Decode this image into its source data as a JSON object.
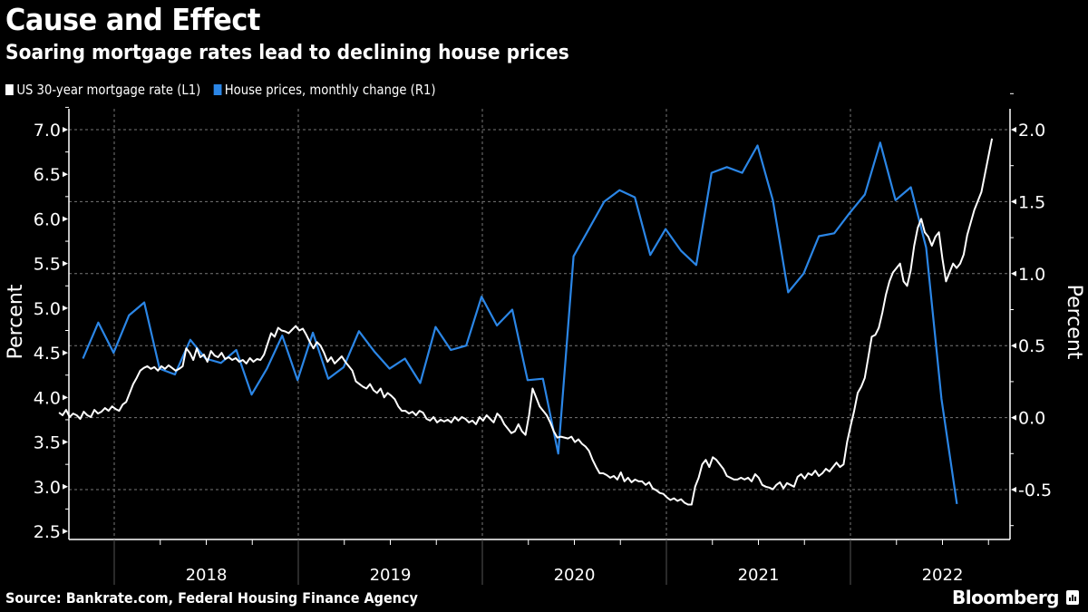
{
  "header": {
    "title": "Cause and Effect",
    "subtitle": "Soaring mortgage rates lead to declining house prices"
  },
  "legend": [
    {
      "label": "US 30-year mortgage rate (L1)",
      "color": "#ffffff"
    },
    {
      "label": "House prices, monthly change (R1)",
      "color": "#2b86e6"
    }
  ],
  "footer": {
    "source": "Source: Bankrate.com, Federal Housing Finance Agency",
    "brand": "Bloomberg"
  },
  "chart_data": {
    "type": "line",
    "title": "Cause and Effect",
    "subtitle": "Soaring mortgage rates lead to declining house prices",
    "x_axis": {
      "type": "time",
      "range": [
        "2017-09",
        "2022-10"
      ],
      "tick_labels": [
        "2018",
        "2019",
        "2020",
        "2021",
        "2022"
      ]
    },
    "y_left": {
      "label": "Percent",
      "range": [
        2.4,
        7.2
      ],
      "ticks": [
        7.0,
        6.5,
        6.0,
        5.5,
        5.0,
        4.5,
        4.0,
        3.5,
        3.0,
        2.5
      ],
      "tick_labels": [
        "7.0",
        "6.5",
        "6.0",
        "5.5",
        "5.0",
        "4.5",
        "4.0",
        "3.5",
        "3.0",
        "2.5"
      ]
    },
    "y_right": {
      "label": "Percent",
      "range": [
        -0.85,
        2.25
      ],
      "ticks": [
        2.0,
        1.5,
        1.0,
        0.5,
        0.0,
        -0.5
      ],
      "tick_labels": [
        "2.0",
        "1.5",
        "1.0",
        "0.5",
        "0.0",
        "-0.5"
      ]
    },
    "grid": true,
    "legend_position": "top-left",
    "series": [
      {
        "name": "US 30-year mortgage rate (L1)",
        "axis": "left",
        "color": "#ffffff",
        "x_start": 2017.7,
        "x_step": 0.0192,
        "values": [
          3.83,
          3.8,
          3.86,
          3.78,
          3.82,
          3.8,
          3.76,
          3.84,
          3.8,
          3.78,
          3.86,
          3.82,
          3.84,
          3.88,
          3.85,
          3.9,
          3.87,
          3.85,
          3.92,
          3.95,
          4.05,
          4.15,
          4.22,
          4.3,
          4.33,
          4.35,
          4.32,
          4.34,
          4.3,
          4.35,
          4.32,
          4.36,
          4.33,
          4.3,
          4.32,
          4.35,
          4.55,
          4.5,
          4.42,
          4.55,
          4.45,
          4.48,
          4.4,
          4.52,
          4.47,
          4.45,
          4.5,
          4.43,
          4.45,
          4.42,
          4.44,
          4.4,
          4.42,
          4.38,
          4.44,
          4.4,
          4.43,
          4.42,
          4.48,
          4.6,
          4.72,
          4.68,
          4.78,
          4.75,
          4.74,
          4.72,
          4.76,
          4.8,
          4.75,
          4.77,
          4.7,
          4.62,
          4.55,
          4.62,
          4.58,
          4.5,
          4.4,
          4.45,
          4.38,
          4.42,
          4.46,
          4.4,
          4.35,
          4.3,
          4.18,
          4.15,
          4.12,
          4.1,
          4.15,
          4.08,
          4.05,
          4.1,
          4.0,
          4.05,
          4.02,
          3.98,
          3.9,
          3.85,
          3.85,
          3.82,
          3.84,
          3.8,
          3.85,
          3.83,
          3.76,
          3.74,
          3.78,
          3.72,
          3.75,
          3.73,
          3.75,
          3.72,
          3.78,
          3.74,
          3.78,
          3.76,
          3.72,
          3.74,
          3.7,
          3.78,
          3.74,
          3.8,
          3.76,
          3.72,
          3.82,
          3.78,
          3.7,
          3.65,
          3.6,
          3.62,
          3.7,
          3.62,
          3.58,
          3.8,
          4.1,
          4.0,
          3.9,
          3.85,
          3.8,
          3.72,
          3.62,
          3.55,
          3.56,
          3.55,
          3.54,
          3.56,
          3.5,
          3.53,
          3.48,
          3.45,
          3.4,
          3.3,
          3.22,
          3.15,
          3.15,
          3.13,
          3.1,
          3.12,
          3.08,
          3.16,
          3.06,
          3.1,
          3.05,
          3.08,
          3.06,
          3.06,
          3.02,
          3.05,
          2.98,
          2.96,
          2.93,
          2.92,
          2.88,
          2.85,
          2.87,
          2.84,
          2.86,
          2.82,
          2.8,
          2.8,
          3.0,
          3.1,
          3.25,
          3.3,
          3.22,
          3.33,
          3.3,
          3.25,
          3.2,
          3.12,
          3.1,
          3.08,
          3.08,
          3.1,
          3.08,
          3.1,
          3.06,
          3.14,
          3.1,
          3.02,
          3.0,
          2.99,
          2.97,
          3.02,
          3.05,
          2.98,
          3.04,
          3.02,
          3.0,
          3.11,
          3.14,
          3.09,
          3.15,
          3.13,
          3.18,
          3.12,
          3.15,
          3.2,
          3.17,
          3.22,
          3.27,
          3.22,
          3.25,
          3.5,
          3.68,
          3.85,
          4.05,
          4.12,
          4.22,
          4.45,
          4.68,
          4.7,
          4.78,
          4.95,
          5.15,
          5.3,
          5.4,
          5.45,
          5.5,
          5.3,
          5.25,
          5.42,
          5.7,
          5.9,
          6.0,
          5.85,
          5.8,
          5.7,
          5.8,
          5.85,
          5.55,
          5.3,
          5.4,
          5.5,
          5.45,
          5.5,
          5.6,
          5.82,
          5.96,
          6.1,
          6.2,
          6.3,
          6.5,
          6.7,
          6.9
        ]
      },
      {
        "name": "House prices, monthly change (R1)",
        "axis": "right",
        "color": "#2b86e6",
        "x_start": 2017.83,
        "x_step": 0.0833,
        "values": [
          0.41,
          0.66,
          0.45,
          0.71,
          0.8,
          0.34,
          0.3,
          0.54,
          0.41,
          0.38,
          0.47,
          0.16,
          0.34,
          0.57,
          0.26,
          0.59,
          0.27,
          0.35,
          0.6,
          0.46,
          0.34,
          0.41,
          0.24,
          0.63,
          0.47,
          0.5,
          0.84,
          0.64,
          0.75,
          0.26,
          0.27,
          -0.25,
          1.12,
          1.31,
          1.5,
          1.58,
          1.53,
          1.13,
          1.31,
          1.16,
          1.06,
          1.7,
          1.74,
          1.7,
          1.89,
          1.51,
          0.87,
          1.0,
          1.26,
          1.28,
          1.42,
          1.55,
          1.91,
          1.51,
          1.6,
          1.18,
          0.13,
          -0.6
        ]
      }
    ]
  }
}
